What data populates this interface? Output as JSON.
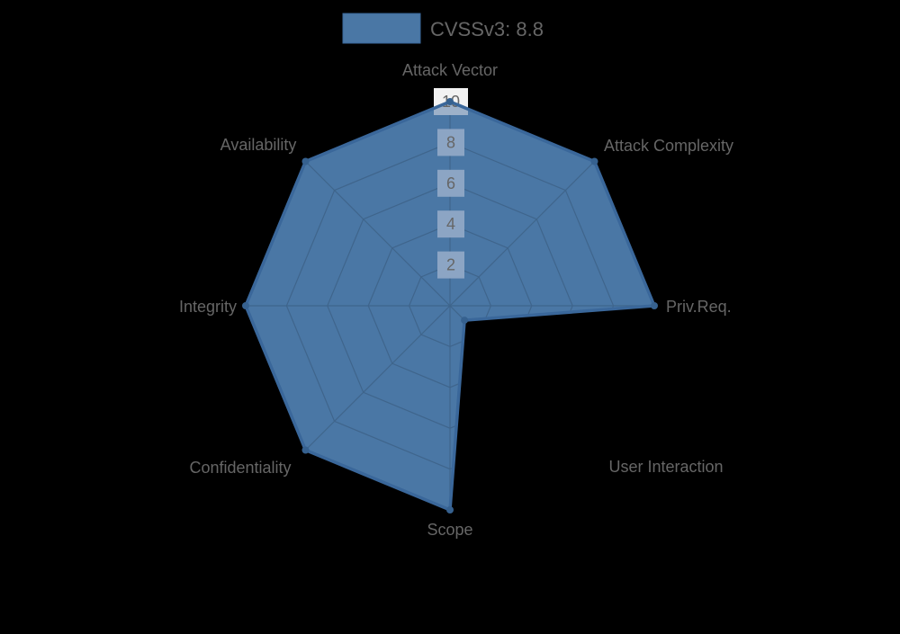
{
  "background": "#000000",
  "legend": {
    "label": "CVSSv3: 8.8",
    "swatch_color": "#4a77a5",
    "position": "top"
  },
  "chart_data": {
    "type": "radar",
    "title": "",
    "categories": [
      "Attack Vector",
      "Attack Complexity",
      "Priv.Req.",
      "User Interaction",
      "Scope",
      "Confidentiality",
      "Integrity",
      "Availability"
    ],
    "series": [
      {
        "name": "CVSSv3: 8.8",
        "values": [
          10,
          10,
          10,
          1,
          10,
          10,
          10,
          10
        ]
      }
    ],
    "rmin": 0,
    "rmax": 10,
    "ticks": [
      2,
      4,
      6,
      8,
      10
    ],
    "grid": true,
    "legend_position": "top",
    "colors": {
      "fill": "#4a77a5",
      "border": "#3a679a",
      "point": "#36618f",
      "grid_line": "#3f658c",
      "tick_backdrop_outside": "#f2f2f2",
      "tick_backdrop_inside": "#8ca5c4",
      "tick_backdrop_fill_tint": "#9db1c9",
      "label": "#666666"
    }
  }
}
